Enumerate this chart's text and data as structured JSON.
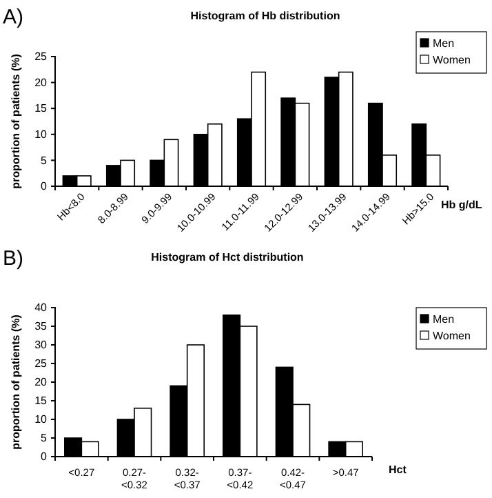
{
  "chart_data": [
    {
      "type": "bar",
      "title": "Histogram of Hb distribution",
      "ylabel": "proportion of patients (%)",
      "xlabel": "Hb g/dL",
      "annotations": [
        "A)"
      ],
      "categories": [
        "Hb<8.0",
        "8.0-8.99",
        "9.0-9.99",
        "10.0-10.99",
        "11.0-11.99",
        "12.0-12.99",
        "13.0-13.99",
        "14.0-14.99",
        "Hb>15.0"
      ],
      "series": [
        {
          "name": "Men",
          "color": "#000000",
          "values": [
            2,
            4,
            5,
            10,
            13,
            17,
            21,
            16,
            12
          ]
        },
        {
          "name": "Women",
          "color": "#ffffff",
          "values": [
            2,
            5,
            9,
            12,
            22,
            16,
            22,
            6,
            6
          ]
        }
      ],
      "ylim": [
        0,
        25
      ],
      "yticks": [
        0,
        5,
        10,
        15,
        20,
        25
      ],
      "grid": false,
      "legend": "top right"
    },
    {
      "type": "bar",
      "title": "Histogram of Hct distribution",
      "ylabel": "proportion of patients (%)",
      "xlabel": "Hct",
      "annotations": [
        "B)"
      ],
      "categories": [
        "<0.27",
        "0.27-<0.32",
        "0.32-<0.37",
        "0.37-<0.42",
        "0.42-<0.47",
        ">0.47"
      ],
      "series": [
        {
          "name": "Men",
          "color": "#000000",
          "values": [
            5,
            10,
            19,
            38,
            24,
            4
          ]
        },
        {
          "name": "Women",
          "color": "#ffffff",
          "values": [
            4,
            13,
            30,
            35,
            14,
            4
          ]
        }
      ],
      "ylim": [
        0,
        40
      ],
      "yticks": [
        0,
        5,
        10,
        15,
        20,
        25,
        30,
        35,
        40
      ],
      "grid": false,
      "legend": "top right"
    }
  ]
}
